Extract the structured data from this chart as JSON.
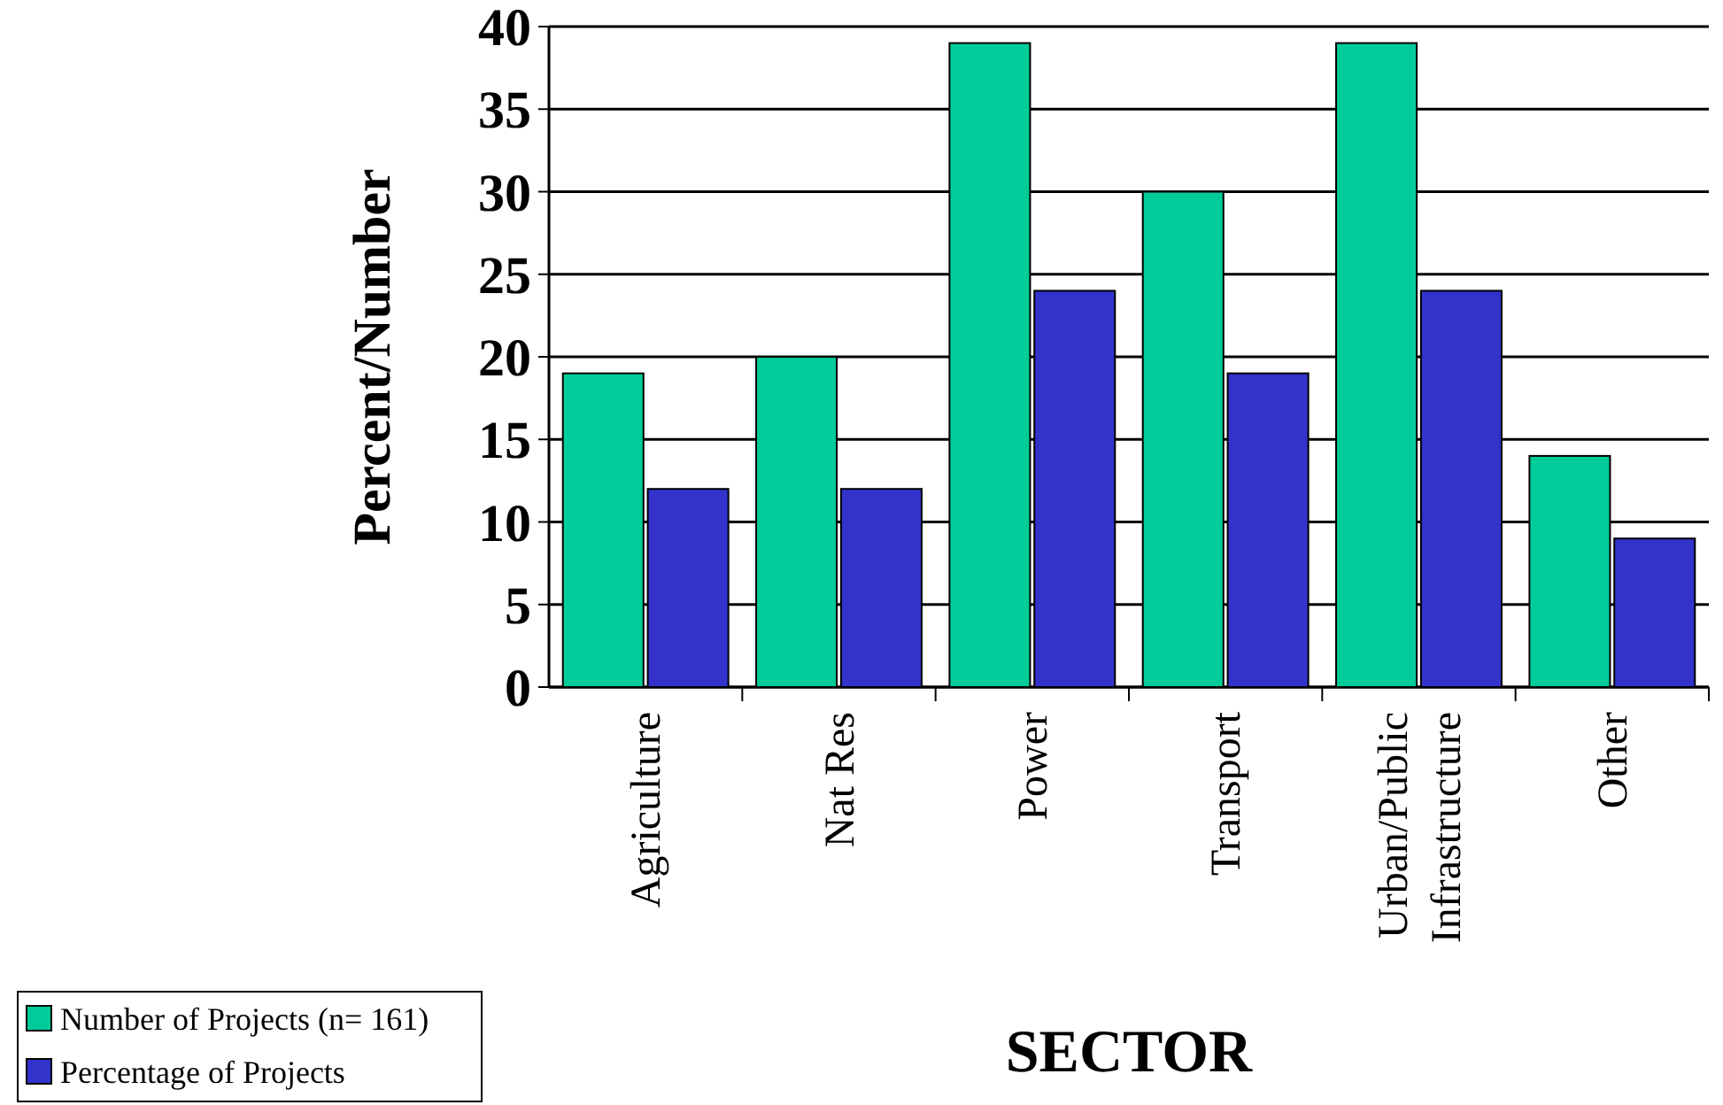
{
  "chart_data": {
    "type": "bar",
    "xlabel": "SECTOR",
    "ylabel": "Percent/Number",
    "categories": [
      "Agriculture",
      "Nat Res",
      "Power",
      "Transport",
      "Urban/Public Infrastructure",
      "Other"
    ],
    "series": [
      {
        "name": "Number of Projects (n= 161)",
        "color": "#00cc99",
        "values": [
          19,
          20,
          39,
          30,
          39,
          14
        ]
      },
      {
        "name": "Percentage of Projects",
        "color": "#3333cc",
        "values": [
          12,
          12,
          24,
          19,
          24,
          9
        ]
      }
    ],
    "ylim": [
      0,
      40
    ],
    "yticks": [
      0,
      5,
      10,
      15,
      20,
      25,
      30,
      35,
      40
    ],
    "grid": "y",
    "legend": "bottom left"
  }
}
